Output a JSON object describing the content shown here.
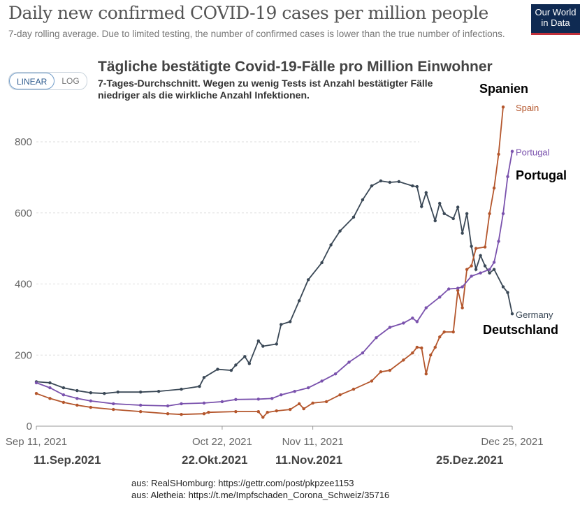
{
  "header": {
    "title": "Daily new confirmed COVID-19 cases per million people",
    "subtitle": "7-day rolling average. Due to limited testing, the number of confirmed cases is lower than the true number of infections.",
    "logo_text": "Our World in Data",
    "toggle": {
      "linear": "LINEAR",
      "log": "LOG",
      "selected": "LINEAR"
    }
  },
  "overlay": {
    "title_de": "Tägliche bestätigte Covid-19-Fälle pro Million Einwohner",
    "subtitle_de": "7-Tages-Durchschnitt. Wegen zu wenig Tests ist Anzahl bestätigter Fälle niedriger als die wirkliche Anzahl Infektionen.",
    "label_spain": "Spanien",
    "label_portugal": "Portugal",
    "label_germany": "Deutschland",
    "date_labels": [
      "11.Sep.2021",
      "22.Okt.2021",
      "11.Nov.2021",
      "25.Dez.2021"
    ],
    "sources": [
      "aus: RealSHomburg: https://gettr.com/post/pkpzee1153",
      "aus: Aletheia: https://t.me/Impfschaden_Corona_Schweiz/35716"
    ],
    "colors": {
      "spain": "#a50f0f",
      "portugal": "#3b3fd8",
      "germany": "#555555"
    }
  },
  "chart_data": {
    "type": "line",
    "title": "Daily new confirmed COVID-19 cases per million people",
    "xlim": [
      "2021-09-11",
      "2021-12-25"
    ],
    "ylim": [
      0,
      800
    ],
    "yticks": [
      0,
      200,
      400,
      600,
      800
    ],
    "xticks": [
      {
        "date": "2021-09-11",
        "label": "Sep 11, 2021"
      },
      {
        "date": "2021-10-22",
        "label": "Oct 22, 2021"
      },
      {
        "date": "2021-11-11",
        "label": "Nov 11, 2021"
      },
      {
        "date": "2021-12-25",
        "label": "Dec 25, 2021"
      }
    ],
    "grid": "horizontal dashed",
    "legend": "line-end labels",
    "series": [
      {
        "name": "Germany",
        "color": "#3a4856",
        "points": [
          [
            "2021-09-11",
            125
          ],
          [
            "2021-09-14",
            122
          ],
          [
            "2021-09-17",
            108
          ],
          [
            "2021-09-20",
            100
          ],
          [
            "2021-09-23",
            94
          ],
          [
            "2021-09-26",
            92
          ],
          [
            "2021-09-29",
            96
          ],
          [
            "2021-10-04",
            96
          ],
          [
            "2021-10-08",
            98
          ],
          [
            "2021-10-13",
            104
          ],
          [
            "2021-10-17",
            112
          ],
          [
            "2021-10-18",
            137
          ],
          [
            "2021-10-21",
            160
          ],
          [
            "2021-10-24",
            157
          ],
          [
            "2021-10-25",
            172
          ],
          [
            "2021-10-27",
            196
          ],
          [
            "2021-10-28",
            176
          ],
          [
            "2021-10-30",
            240
          ],
          [
            "2021-10-31",
            225
          ],
          [
            "2021-11-03",
            231
          ],
          [
            "2021-11-04",
            286
          ],
          [
            "2021-11-06",
            294
          ],
          [
            "2021-11-08",
            353
          ],
          [
            "2021-11-10",
            412
          ],
          [
            "2021-11-13",
            460
          ],
          [
            "2021-11-15",
            510
          ],
          [
            "2021-11-17",
            549
          ],
          [
            "2021-11-20",
            588
          ],
          [
            "2021-11-22",
            637
          ],
          [
            "2021-11-24",
            676
          ],
          [
            "2021-11-26",
            690
          ],
          [
            "2021-11-28",
            686
          ],
          [
            "2021-11-30",
            688
          ],
          [
            "2021-12-03",
            676
          ],
          [
            "2021-12-04",
            674
          ],
          [
            "2021-12-05",
            618
          ],
          [
            "2021-12-06",
            657
          ],
          [
            "2021-12-08",
            578
          ],
          [
            "2021-12-09",
            627
          ],
          [
            "2021-12-10",
            598
          ],
          [
            "2021-12-12",
            584
          ],
          [
            "2021-12-13",
            616
          ],
          [
            "2021-12-14",
            543
          ],
          [
            "2021-12-15",
            598
          ],
          [
            "2021-12-16",
            506
          ],
          [
            "2021-12-17",
            441
          ],
          [
            "2021-12-18",
            480
          ],
          [
            "2021-12-19",
            451
          ],
          [
            "2021-12-20",
            431
          ],
          [
            "2021-12-21",
            441
          ],
          [
            "2021-12-23",
            392
          ],
          [
            "2021-12-24",
            376
          ],
          [
            "2021-12-25",
            316
          ]
        ]
      },
      {
        "name": "Spain",
        "color": "#b4562c",
        "points": [
          [
            "2021-09-11",
            92
          ],
          [
            "2021-09-14",
            78
          ],
          [
            "2021-09-17",
            67
          ],
          [
            "2021-09-20",
            59
          ],
          [
            "2021-09-23",
            53
          ],
          [
            "2021-09-28",
            47
          ],
          [
            "2021-10-04",
            41
          ],
          [
            "2021-10-10",
            35
          ],
          [
            "2021-10-13",
            33
          ],
          [
            "2021-10-18",
            35
          ],
          [
            "2021-10-19",
            39
          ],
          [
            "2021-10-25",
            41
          ],
          [
            "2021-10-30",
            41
          ],
          [
            "2021-10-31",
            25
          ],
          [
            "2021-11-01",
            39
          ],
          [
            "2021-11-03",
            43
          ],
          [
            "2021-11-06",
            47
          ],
          [
            "2021-11-08",
            63
          ],
          [
            "2021-11-09",
            49
          ],
          [
            "2021-11-11",
            65
          ],
          [
            "2021-11-14",
            69
          ],
          [
            "2021-11-17",
            88
          ],
          [
            "2021-11-20",
            104
          ],
          [
            "2021-11-24",
            127
          ],
          [
            "2021-11-26",
            153
          ],
          [
            "2021-11-28",
            157
          ],
          [
            "2021-12-01",
            186
          ],
          [
            "2021-12-03",
            206
          ],
          [
            "2021-12-04",
            222
          ],
          [
            "2021-12-05",
            220
          ],
          [
            "2021-12-06",
            147
          ],
          [
            "2021-12-07",
            200
          ],
          [
            "2021-12-08",
            222
          ],
          [
            "2021-12-09",
            251
          ],
          [
            "2021-12-10",
            265
          ],
          [
            "2021-12-12",
            265
          ],
          [
            "2021-12-13",
            382
          ],
          [
            "2021-12-14",
            333
          ],
          [
            "2021-12-15",
            441
          ],
          [
            "2021-12-16",
            451
          ],
          [
            "2021-12-17",
            500
          ],
          [
            "2021-12-19",
            504
          ],
          [
            "2021-12-20",
            598
          ],
          [
            "2021-12-21",
            670
          ],
          [
            "2021-12-22",
            765
          ],
          [
            "2021-12-23",
            898
          ]
        ]
      },
      {
        "name": "Portugal",
        "color": "#7a52ad",
        "points": [
          [
            "2021-09-11",
            122
          ],
          [
            "2021-09-14",
            108
          ],
          [
            "2021-09-17",
            88
          ],
          [
            "2021-09-20",
            78
          ],
          [
            "2021-09-23",
            71
          ],
          [
            "2021-09-28",
            63
          ],
          [
            "2021-10-04",
            59
          ],
          [
            "2021-10-10",
            57
          ],
          [
            "2021-10-13",
            63
          ],
          [
            "2021-10-18",
            65
          ],
          [
            "2021-10-22",
            69
          ],
          [
            "2021-10-25",
            75
          ],
          [
            "2021-10-30",
            76
          ],
          [
            "2021-11-02",
            78
          ],
          [
            "2021-11-04",
            88
          ],
          [
            "2021-11-07",
            98
          ],
          [
            "2021-11-10",
            108
          ],
          [
            "2021-11-13",
            127
          ],
          [
            "2021-11-16",
            147
          ],
          [
            "2021-11-19",
            180
          ],
          [
            "2021-11-22",
            206
          ],
          [
            "2021-11-25",
            249
          ],
          [
            "2021-11-28",
            278
          ],
          [
            "2021-12-01",
            290
          ],
          [
            "2021-12-03",
            304
          ],
          [
            "2021-12-04",
            294
          ],
          [
            "2021-12-06",
            333
          ],
          [
            "2021-12-09",
            363
          ],
          [
            "2021-12-11",
            386
          ],
          [
            "2021-12-13",
            388
          ],
          [
            "2021-12-14",
            392
          ],
          [
            "2021-12-16",
            422
          ],
          [
            "2021-12-18",
            431
          ],
          [
            "2021-12-20",
            441
          ],
          [
            "2021-12-21",
            461
          ],
          [
            "2021-12-22",
            520
          ],
          [
            "2021-12-23",
            598
          ],
          [
            "2021-12-24",
            702
          ],
          [
            "2021-12-25",
            773
          ]
        ]
      }
    ]
  }
}
